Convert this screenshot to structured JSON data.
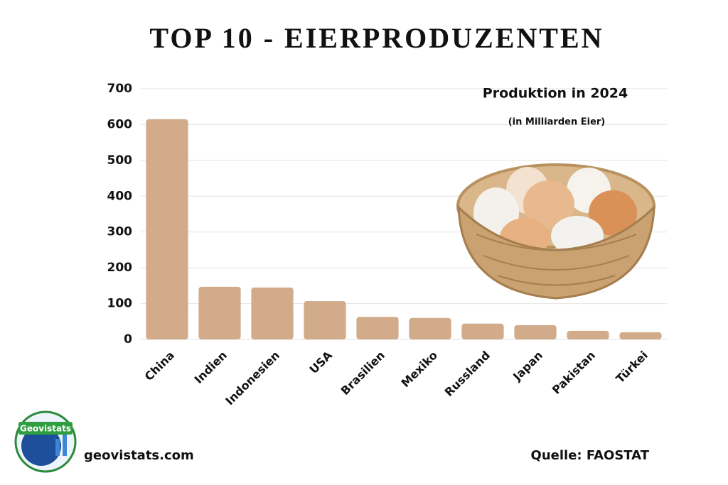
{
  "chart_data": {
    "type": "bar",
    "title": "TOP 10 - EIERPRODUZENTEN",
    "subtitle": "Produktion in 2024",
    "note": "(in Milliarden Eier)",
    "categories": [
      "China",
      "Indien",
      "Indonesien",
      "USA",
      "Brasilien",
      "Mexiko",
      "Russland",
      "Japan",
      "Pakistan",
      "Türkei"
    ],
    "values": [
      615,
      147,
      145,
      107,
      63,
      60,
      44,
      40,
      24,
      20
    ],
    "color": "#d2ab8a",
    "ylim": [
      0,
      700
    ],
    "yticks": [
      0,
      100,
      200,
      300,
      400,
      500,
      600,
      700
    ],
    "grid": true,
    "website": "geovistats.com",
    "source": "Quelle: FAOSTAT",
    "logo": "Geovistats"
  }
}
